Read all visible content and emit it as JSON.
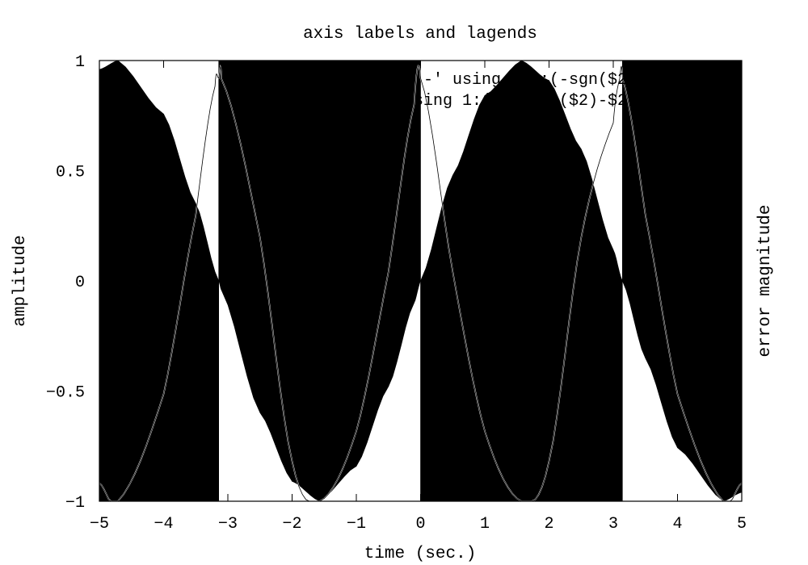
{
  "chart_data": {
    "type": "area",
    "title": "axis labels and lagends",
    "xlabel": "time (sec.)",
    "ylabel": "amplitude",
    "y2label": "error magnitude",
    "xlim": [
      -5,
      5
    ],
    "ylim": [
      -1,
      1
    ],
    "xticks": [
      "-5",
      "-4",
      "-3",
      "-2",
      "-1",
      "0",
      "1",
      "2",
      "3",
      "4",
      "5"
    ],
    "yticks": [
      "-1",
      "-0.5",
      "0",
      "0.5",
      "1"
    ],
    "grid": false,
    "legend_position": "top-right",
    "series": [
      {
        "name": "'-' using 1:2:(-sgn($2))",
        "style": "filledcurves",
        "color": "#000000",
        "x": [
          -5.0,
          -4.712,
          -4.0,
          -3.5,
          -3.142,
          -3.1,
          -2.5,
          -2.0,
          -1.571,
          -1.0,
          -0.5,
          -0.1,
          0.0,
          0.5,
          1.0,
          1.571,
          2.0,
          2.5,
          3.0,
          3.142,
          3.5,
          4.0,
          4.712,
          5.0
        ],
        "y": [
          0.959,
          1.0,
          0.757,
          0.351,
          0.0,
          -0.042,
          -0.598,
          -0.909,
          -1.0,
          -0.841,
          -0.479,
          -0.1,
          0.0,
          0.479,
          0.841,
          1.0,
          0.909,
          0.598,
          0.141,
          0.0,
          -0.351,
          -0.757,
          -1.0,
          -0.959
        ]
      },
      {
        "name": "'' using 1:(abs(sgn($2)-$2))",
        "style": "lines",
        "color": "#000000",
        "x": [
          -5.0,
          -4.712,
          -4.0,
          -3.5,
          -3.2,
          -3.142,
          -3.1,
          -2.5,
          -2.0,
          -1.571,
          -1.0,
          -0.5,
          -0.1,
          0.0,
          0.5,
          1.0,
          1.571,
          2.0,
          2.5,
          3.0,
          3.1,
          3.142,
          3.5,
          4.0,
          4.712,
          5.0
        ],
        "y": [
          -0.918,
          -1.0,
          -0.514,
          0.298,
          0.883,
          0.92,
          0.917,
          0.196,
          -0.818,
          -1.0,
          -0.682,
          0.042,
          0.8,
          0.92,
          0.042,
          -0.682,
          -1.0,
          -0.818,
          0.196,
          0.717,
          0.917,
          0.92,
          0.298,
          -0.514,
          -1.0,
          -0.918
        ]
      }
    ]
  }
}
